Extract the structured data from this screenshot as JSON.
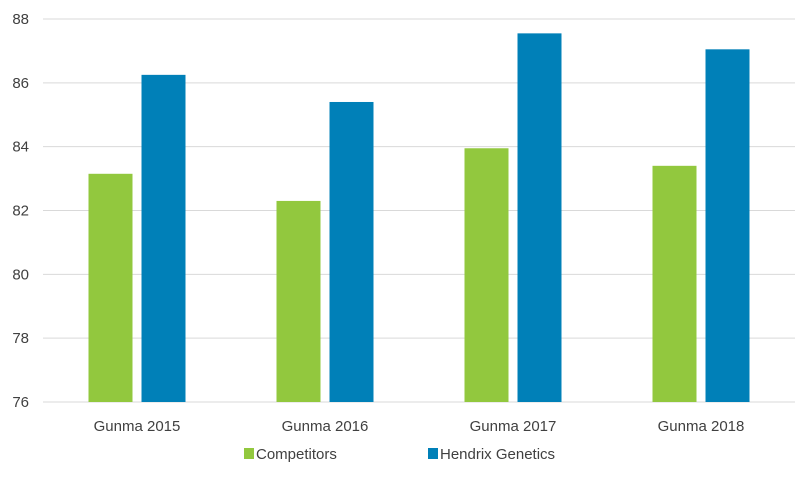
{
  "chart_data": {
    "type": "bar",
    "title": "",
    "xlabel": "",
    "ylabel": "",
    "categories": [
      "Gunma 2015",
      "Gunma 2016",
      "Gunma 2017",
      "Gunma 2018"
    ],
    "series": [
      {
        "name": "Competitors",
        "color": "#92c83e",
        "values": [
          83.15,
          82.3,
          83.95,
          83.4
        ]
      },
      {
        "name": "Hendrix Genetics",
        "color": "#0080b8",
        "values": [
          86.25,
          85.4,
          87.55,
          87.05
        ]
      }
    ],
    "ylim": [
      76,
      88
    ],
    "yticks": [
      76,
      78,
      80,
      82,
      84,
      86,
      88
    ],
    "grid": true,
    "legend_position": "bottom"
  }
}
